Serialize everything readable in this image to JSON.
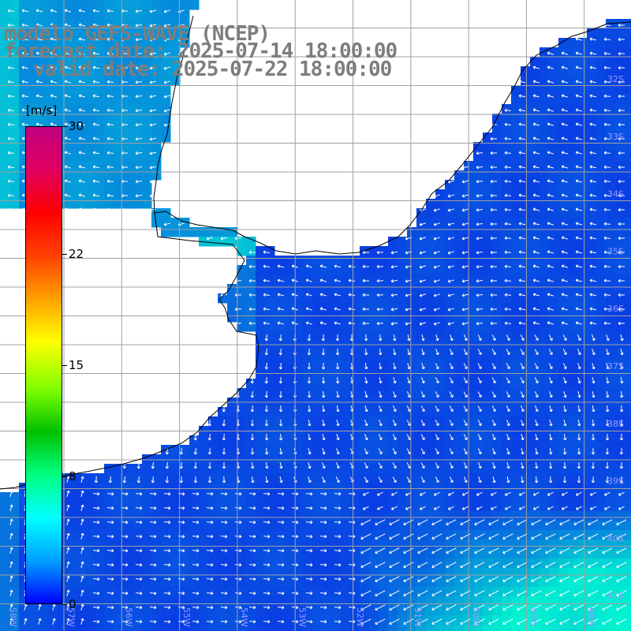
{
  "header": {
    "line1": "modelo GEFS-WAVE (NCEP)",
    "line2": "forecast date: 2025-07-14 18:00:00",
    "line3": "valid date: 2025-07-22 18:00:00"
  },
  "colorbar": {
    "unit": "[m/s]",
    "ticks": [
      "30",
      "22",
      "15",
      "8",
      "0"
    ],
    "tick_values": [
      30,
      22,
      15,
      8,
      0
    ],
    "min": 0,
    "max": 30,
    "colors": [
      "#0000ff",
      "#00a0ff",
      "#00ffff",
      "#00ff80",
      "#00c000",
      "#80ff00",
      "#ffff00",
      "#ffa000",
      "#ff4000",
      "#ff0000",
      "#e00060",
      "#c00080"
    ]
  },
  "map": {
    "lat_labels": [
      "32S",
      "33S",
      "34S",
      "35S",
      "36S",
      "37S",
      "38S",
      "39S",
      "40S",
      "41S"
    ],
    "lon_labels": [
      "58W",
      "57W",
      "56W",
      "55W",
      "54W",
      "53W",
      "52W",
      "51W",
      "50W",
      "49W",
      "48W"
    ],
    "land_color": "#ffffff",
    "grid_color": "#a0a0a0",
    "sea_low_color": "#0a28e6",
    "sea_high_color": "#00ffd0",
    "arrow_color": "#ffffff"
  }
}
